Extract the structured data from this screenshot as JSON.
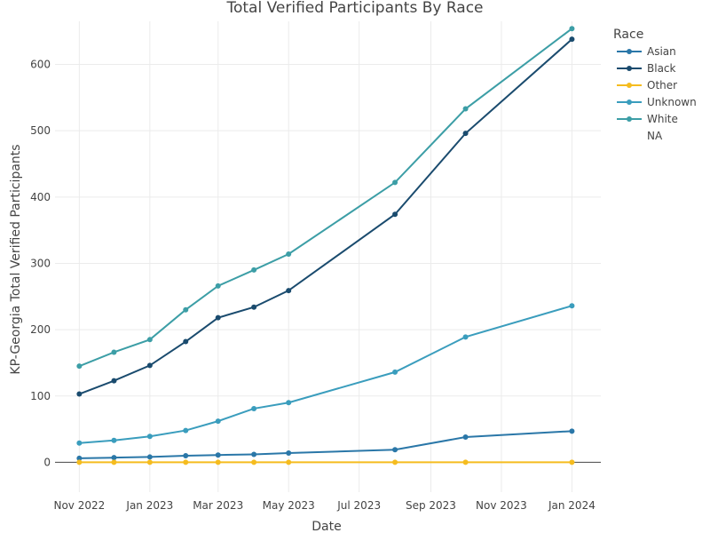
{
  "chart_data": {
    "type": "line",
    "title": "Total Verified Participants By Race",
    "xlabel": "Date",
    "ylabel": "KP-Georgia Total Verified Participants",
    "x_dates": [
      "2022-11-01",
      "2022-12-01",
      "2023-01-01",
      "2023-02-01",
      "2023-03-01",
      "2023-04-01",
      "2023-05-01",
      "2023-08-01",
      "2023-10-01",
      "2024-01-01"
    ],
    "x_tick_labels": [
      "Nov 2022",
      "Jan 2023",
      "Mar 2023",
      "May 2023",
      "Jul 2023",
      "Sep 2023",
      "Nov 2023",
      "Jan 2024"
    ],
    "x_tick_dates": [
      "2022-11-01",
      "2023-01-01",
      "2023-03-01",
      "2023-05-01",
      "2023-07-01",
      "2023-09-01",
      "2023-11-01",
      "2024-01-01"
    ],
    "xlim": [
      "2022-10-11",
      "2024-01-26"
    ],
    "ylim": [
      -45,
      665
    ],
    "y_ticks": [
      0,
      100,
      200,
      300,
      400,
      500,
      600
    ],
    "grid": true,
    "legend_title": "Race",
    "legend_position": "top-right",
    "series": [
      {
        "name": "Asian",
        "color": "#2a77a8",
        "values": [
          6,
          7,
          8,
          10,
          11,
          12,
          14,
          19,
          38,
          47
        ]
      },
      {
        "name": "Black",
        "color": "#1a4b6e",
        "values": [
          103,
          123,
          146,
          182,
          218,
          234,
          259,
          374,
          496,
          638
        ]
      },
      {
        "name": "Other",
        "color": "#f5bc1f",
        "values": [
          0,
          0,
          0,
          0,
          0,
          0,
          0,
          0,
          0,
          0
        ]
      },
      {
        "name": "Unknown",
        "color": "#3a9dbd",
        "values": [
          29,
          33,
          39,
          48,
          62,
          81,
          90,
          136,
          189,
          236
        ]
      },
      {
        "name": "White",
        "color": "#3c9ea6",
        "values": [
          145,
          166,
          185,
          230,
          266,
          290,
          314,
          422,
          533,
          654
        ]
      },
      {
        "name": "NA",
        "color": null,
        "values": []
      }
    ]
  }
}
